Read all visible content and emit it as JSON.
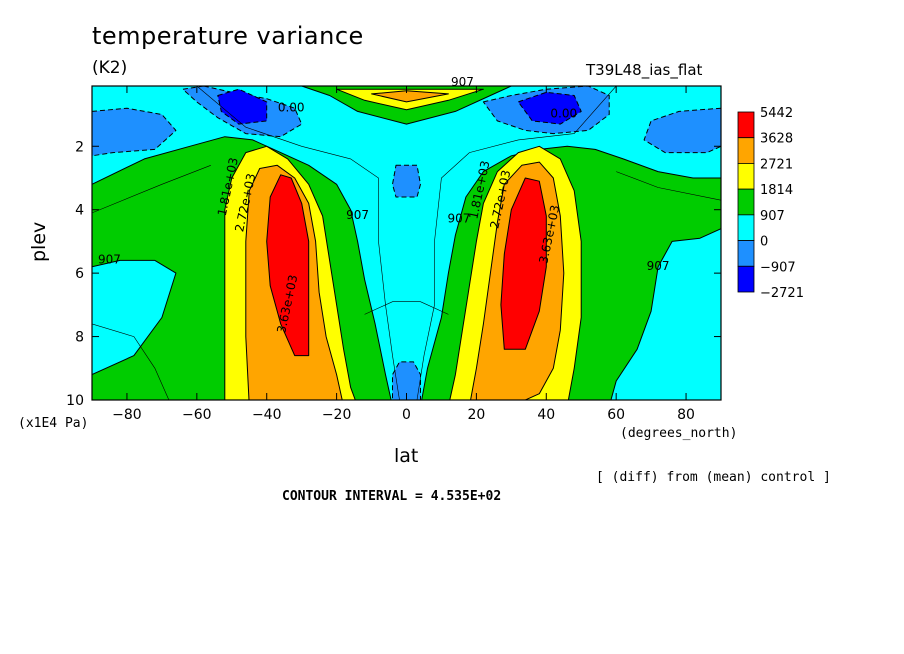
{
  "chart_data": {
    "type": "heatmap",
    "title": "temperature variance",
    "units": "(K2)",
    "experiment": "T39L48_ias_flat",
    "xlabel": "lat",
    "x_units": "(degrees_north)",
    "ylabel": "plev",
    "y_units": "(x1E4 Pa)",
    "xlim": [
      -90,
      90
    ],
    "ylim": [
      10,
      0.1
    ],
    "x_ticks": [
      -80,
      -60,
      -40,
      -20,
      0,
      20,
      40,
      60,
      80
    ],
    "x_tick_labels": [
      "−80",
      "−60",
      "−40",
      "−20",
      "0",
      "20",
      "40",
      "60",
      "80"
    ],
    "y_ticks": [
      2,
      4,
      6,
      8,
      10
    ],
    "y_tick_labels": [
      "2",
      "4",
      "6",
      "8",
      "10"
    ],
    "colorbar": {
      "levels": [
        5442,
        3628,
        2721,
        1814,
        907,
        0,
        -907,
        -2721
      ],
      "labels": [
        "5442",
        "3628",
        "2721",
        "1814",
        "907",
        "0",
        "−907",
        "−2721"
      ],
      "colors": [
        "#ff0000",
        "#ffa500",
        "#ffff00",
        "#00cc00",
        "#00ffff",
        "#1e90ff",
        "#0000ff"
      ]
    },
    "contour_labels": [
      {
        "text": "907",
        "lat": 16,
        "plev": 0.1
      },
      {
        "text": "0.00",
        "lat": -33,
        "plev": 0.9
      },
      {
        "text": "0.00",
        "lat": 45,
        "plev": 1.1
      },
      {
        "text": "1.81e+03",
        "lat": -50,
        "plev": 3.3
      },
      {
        "text": "2.72e+03",
        "lat": -45,
        "plev": 3.8
      },
      {
        "text": "1.81e+03",
        "lat": 22,
        "plev": 3.4
      },
      {
        "text": "2.72e+03",
        "lat": 28,
        "plev": 3.7
      },
      {
        "text": "907",
        "lat": -14,
        "plev": 4.3
      },
      {
        "text": "907",
        "lat": 15,
        "plev": 4.4
      },
      {
        "text": "907",
        "lat": -85,
        "plev": 5.7
      },
      {
        "text": "907",
        "lat": 72,
        "plev": 5.9
      },
      {
        "text": "3.63e+03",
        "lat": 42,
        "plev": 4.8
      },
      {
        "text": "3.63e+03",
        "lat": -33,
        "plev": 7.0
      }
    ],
    "max_value": 5442,
    "min_value": -2721,
    "annotation": "[ (diff) from (mean) control ]",
    "contour_interval": "CONTOUR INTERVAL = 4.535E+02"
  }
}
